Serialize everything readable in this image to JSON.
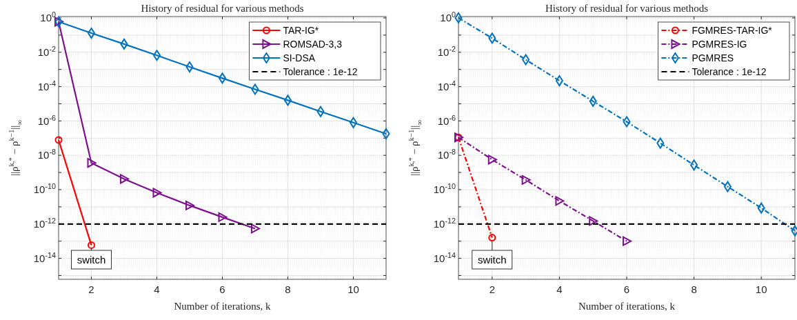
{
  "chart_data": [
    {
      "type": "line",
      "title": "History of residual for various methods",
      "xlabel": "Number of iterations, k",
      "ylabel": "||ρ$^{k,*}$ − ρ$^{k−1}$||$_{∞}$",
      "log": "y",
      "grid": true,
      "legend": "top right",
      "line_style": "solid",
      "xlim": [
        1,
        11
      ],
      "xticks": [
        2,
        4,
        6,
        8,
        10
      ],
      "ylim": [
        6e-16,
        1.2
      ],
      "yticks": [
        {
          "value": 1,
          "label": "10$^{0}$"
        },
        {
          "value": 0.1,
          "label": null
        },
        {
          "value": 0.01,
          "label": "10$^{-2}$"
        },
        {
          "value": 0.001,
          "label": null
        },
        {
          "value": 0.0001,
          "label": "10$^{-4}$"
        },
        {
          "value": 1e-05,
          "label": null
        },
        {
          "value": 1e-06,
          "label": "10$^{-6}$"
        },
        {
          "value": 1e-07,
          "label": null
        },
        {
          "value": 1e-08,
          "label": "10$^{-8}$"
        },
        {
          "value": 1e-09,
          "label": null
        },
        {
          "value": 1e-10,
          "label": "10$^{-10}$"
        },
        {
          "value": 1e-11,
          "label": null
        },
        {
          "value": 1e-12,
          "label": "10$^{-12}$"
        },
        {
          "value": 1e-13,
          "label": null
        },
        {
          "value": 1e-14,
          "label": "10$^{-14}$"
        },
        {
          "value": 1e-15,
          "label": null
        }
      ],
      "series": [
        {
          "name": "TAR-IG*",
          "color": "#ff0000",
          "marker": "circle",
          "x": [
            1,
            2
          ],
          "values": [
            7.8e-08,
            5.9e-14
          ]
        },
        {
          "name": "ROMSAD-3,3",
          "color": "#7e0f8e",
          "marker": "triangle",
          "x": [
            1,
            2,
            3,
            4,
            5,
            6,
            7
          ],
          "values": [
            0.6,
            3.6e-09,
            4.2e-10,
            6.6e-11,
            1.2e-11,
            2.5e-12,
            5.4e-13
          ]
        },
        {
          "name": "SI-DSA",
          "color": "#0072bd",
          "marker": "diamond",
          "x": [
            1,
            2,
            3,
            4,
            5,
            6,
            7,
            8,
            9,
            10,
            11
          ],
          "values": [
            0.6,
            0.13,
            0.03,
            0.0066,
            0.0014,
            0.00031,
            7e-05,
            1.6e-05,
            3.5e-06,
            8e-07,
            1.8e-07
          ]
        },
        {
          "name": "Tolerance : 1e-12",
          "color": "#000000",
          "marker": "none",
          "line_style": "dashed",
          "x": [
            1,
            11
          ],
          "values": [
            1e-12,
            1e-12
          ]
        }
      ],
      "annotations": [
        {
          "text": "switch",
          "x": 2,
          "y": 5.9e-14
        }
      ]
    },
    {
      "type": "line",
      "title": "History of residual for various methods",
      "xlabel": "Number of iterations, k",
      "ylabel": "||ρ$^{k,*}$ − ρ$^{k−1}$||$_{∞}$",
      "log": "y",
      "grid": true,
      "legend": "top right",
      "line_style": "dashed",
      "xlim": [
        1,
        11
      ],
      "xticks": [
        2,
        4,
        6,
        8,
        10
      ],
      "ylim": [
        6e-16,
        1.2
      ],
      "yticks": [
        {
          "value": 1,
          "label": "10$^{0}$"
        },
        {
          "value": 0.1,
          "label": null
        },
        {
          "value": 0.01,
          "label": "10$^{-2}$"
        },
        {
          "value": 0.001,
          "label": null
        },
        {
          "value": 0.0001,
          "label": "10$^{-4}$"
        },
        {
          "value": 1e-05,
          "label": null
        },
        {
          "value": 1e-06,
          "label": "10$^{-6}$"
        },
        {
          "value": 1e-07,
          "label": null
        },
        {
          "value": 1e-08,
          "label": "10$^{-8}$"
        },
        {
          "value": 1e-09,
          "label": null
        },
        {
          "value": 1e-10,
          "label": "10$^{-10}$"
        },
        {
          "value": 1e-11,
          "label": null
        },
        {
          "value": 1e-12,
          "label": "10$^{-12}$"
        },
        {
          "value": 1e-13,
          "label": null
        },
        {
          "value": 1e-14,
          "label": "10$^{-14}$"
        },
        {
          "value": 1e-15,
          "label": null
        }
      ],
      "series": [
        {
          "name": "FGMRES-TAR-IG*",
          "color": "#ff0000",
          "marker": "circle",
          "x": [
            1,
            2
          ],
          "values": [
            1.1e-07,
            1.6e-13
          ]
        },
        {
          "name": "PGMRES-IG",
          "color": "#7e0f8e",
          "marker": "triangle",
          "x": [
            1,
            2,
            3,
            4,
            5,
            6
          ],
          "values": [
            1.1e-07,
            5.6e-09,
            3.7e-10,
            2.2e-11,
            1.5e-12,
            1e-13
          ]
        },
        {
          "name": "PGMRES",
          "color": "#0072bd",
          "marker": "diamond",
          "x": [
            1,
            2,
            3,
            4,
            5,
            6,
            7,
            8,
            9,
            10,
            11
          ],
          "values": [
            1.0,
            0.066,
            0.0037,
            0.00022,
            1.4e-05,
            9e-07,
            5.1e-08,
            2.7e-09,
            1.5e-10,
            8.5e-12,
            4e-13
          ]
        },
        {
          "name": "Tolerance : 1e-12",
          "color": "#000000",
          "marker": "none",
          "line_style": "dashed",
          "x": [
            1,
            11
          ],
          "values": [
            1e-12,
            1e-12
          ]
        }
      ],
      "annotations": [
        {
          "text": "switch",
          "x": 2,
          "y": 1.6e-13
        }
      ]
    }
  ]
}
